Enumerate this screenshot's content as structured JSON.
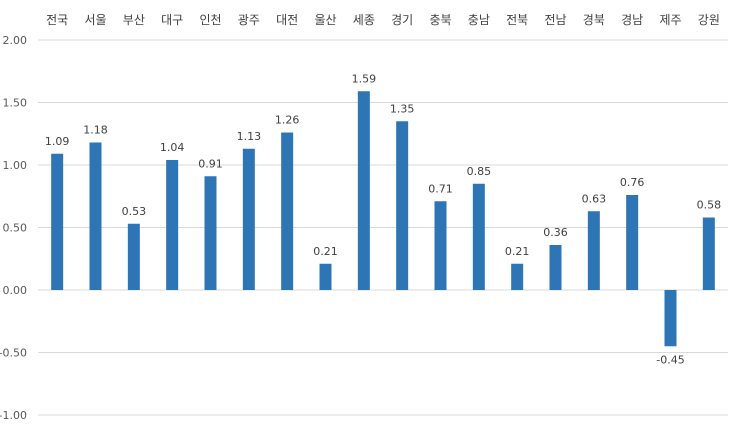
{
  "chart_data": {
    "type": "bar",
    "categories": [
      "전국",
      "서울",
      "부산",
      "대구",
      "인천",
      "광주",
      "대전",
      "울산",
      "세종",
      "경기",
      "충북",
      "충남",
      "전북",
      "전남",
      "경북",
      "경남",
      "제주",
      "강원"
    ],
    "values": [
      1.09,
      1.18,
      0.53,
      1.04,
      0.91,
      1.13,
      1.26,
      0.21,
      1.59,
      1.35,
      0.71,
      0.85,
      0.21,
      0.36,
      0.63,
      0.76,
      -0.45,
      0.58
    ],
    "value_labels": [
      "1.09",
      "1.18",
      "0.53",
      "1.04",
      "0.91",
      "1.13",
      "1.26",
      "0.21",
      "1.59",
      "1.35",
      "0.71",
      "0.85",
      "0.21",
      "0.36",
      "0.63",
      "0.76",
      "-0.45",
      "0.58"
    ],
    "title": "",
    "xlabel": "",
    "ylabel": "",
    "ylim": [
      -1.0,
      2.0
    ],
    "yticks": [
      2.0,
      1.5,
      1.0,
      0.5,
      0.0,
      -0.5,
      -1.0
    ],
    "ytick_labels": [
      "2.00",
      "1.50",
      "1.00",
      "0.50",
      "0.00",
      "-0.50",
      "-1.00"
    ],
    "category_axis_position": "top",
    "grid": true,
    "legend": "none",
    "bar_color": "#2E75B6",
    "grid_color": "#D9D9D9"
  }
}
